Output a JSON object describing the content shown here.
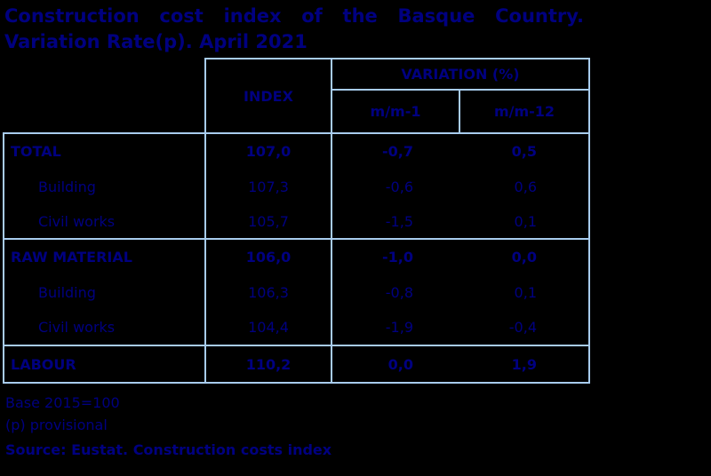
{
  "title": {
    "line1": "Construction cost index of the Basque Country.",
    "line2": "Variation Rate(p). April 2021"
  },
  "table": {
    "header": {
      "index": "INDEX",
      "variation": "VARIATION (%)",
      "mm1": "m/m-1",
      "mm12": "m/m-12"
    },
    "rows": [
      {
        "label": "TOTAL",
        "index": "107,0",
        "mm1": "-0,7",
        "mm12": "0,5"
      },
      {
        "label": "Building",
        "index": "107,3",
        "mm1": "-0,6",
        "mm12": "0,6"
      },
      {
        "label": "Civil works",
        "index": "105,7",
        "mm1": "-1,5",
        "mm12": "0,1"
      },
      {
        "label": "RAW MATERIAL",
        "index": "106,0",
        "mm1": "-1,0",
        "mm12": "0,0"
      },
      {
        "label": "Building",
        "index": "106,3",
        "mm1": "-0,8",
        "mm12": "0,1"
      },
      {
        "label": "Civil works",
        "index": "104,4",
        "mm1": "-1,9",
        "mm12": "-0,4"
      },
      {
        "label": "LABOUR",
        "index": "110,2",
        "mm1": "0,0",
        "mm12": "1,9"
      }
    ]
  },
  "footer": {
    "base": "Base 2015=100",
    "provisional": "(p) provisional",
    "source": "Source: Eustat. Construction costs index"
  },
  "colors": {
    "text": "#000080",
    "border": "#A8CCEE",
    "background": "#000000"
  },
  "chart_data": {
    "type": "table",
    "title": "Construction cost index of the Basque Country. Variation Rate(p). April 2021",
    "columns": [
      "",
      "INDEX",
      "VARIATION (%) m/m-1",
      "VARIATION (%) m/m-12"
    ],
    "rows": [
      [
        "TOTAL",
        107.0,
        -0.7,
        0.5
      ],
      [
        "Building",
        107.3,
        -0.6,
        0.6
      ],
      [
        "Civil works",
        105.7,
        -1.5,
        0.1
      ],
      [
        "RAW MATERIAL",
        106.0,
        -1.0,
        0.0
      ],
      [
        "Building",
        106.3,
        -0.8,
        0.1
      ],
      [
        "Civil works",
        104.4,
        -1.9,
        -0.4
      ],
      [
        "LABOUR",
        110.2,
        0.0,
        1.9
      ]
    ],
    "notes": [
      "Base 2015=100",
      "(p) provisional"
    ],
    "source": "Source: Eustat. Construction costs index"
  }
}
